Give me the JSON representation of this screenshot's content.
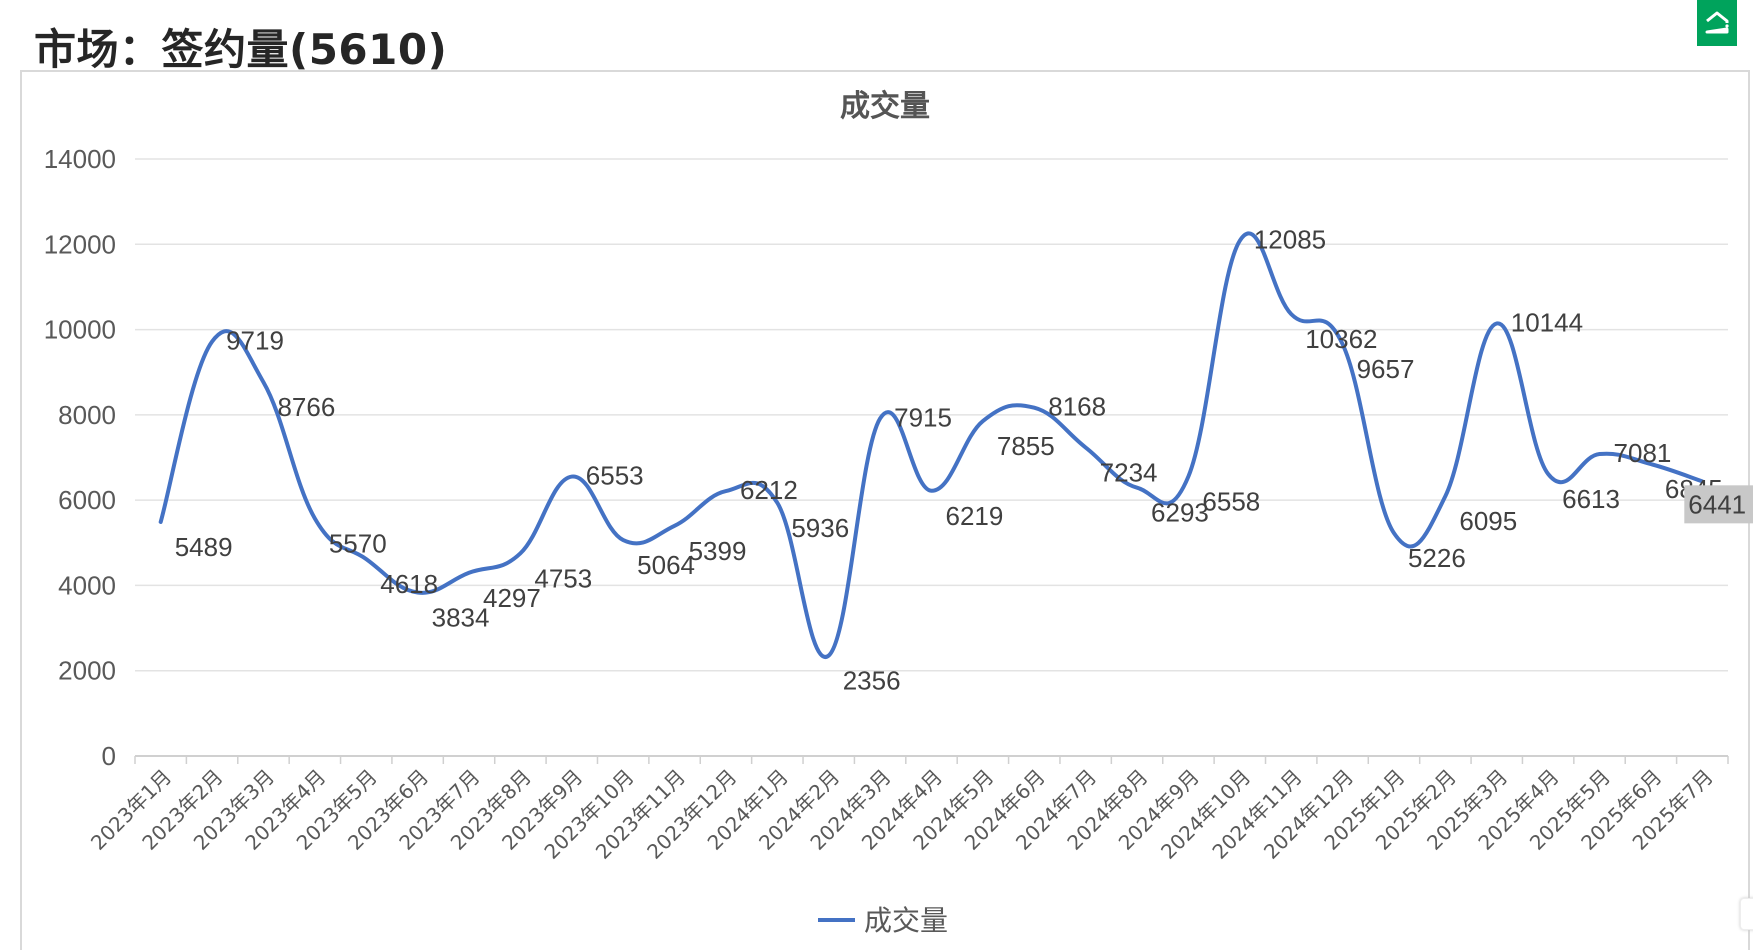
{
  "page": {
    "title": "市场：签约量(5610)"
  },
  "logo": {
    "icon": "house-icon",
    "color": "#00a35c"
  },
  "chart_data": {
    "type": "line",
    "title": "成交量",
    "xlabel": "",
    "ylabel": "",
    "ylim": [
      0,
      14000
    ],
    "yticks": [
      0,
      2000,
      4000,
      6000,
      8000,
      10000,
      12000,
      14000
    ],
    "grid": true,
    "legend_position": "bottom",
    "smooth": true,
    "line_color": "#4472c4",
    "categories": [
      "2023年1月",
      "2023年2月",
      "2023年3月",
      "2023年4月",
      "2023年5月",
      "2023年6月",
      "2023年7月",
      "2023年8月",
      "2023年9月",
      "2023年10月",
      "2023年11月",
      "2023年12月",
      "2024年1月",
      "2024年2月",
      "2024年3月",
      "2024年4月",
      "2024年5月",
      "2024年6月",
      "2024年7月",
      "2024年8月",
      "2024年9月",
      "2024年10月",
      "2024年11月",
      "2024年12月",
      "2025年1月",
      "2025年2月",
      "2025年3月",
      "2025年4月",
      "2025年5月",
      "2025年6月",
      "2025年7月"
    ],
    "series": [
      {
        "name": "成交量",
        "values": [
          5489,
          9719,
          8766,
          5570,
          4618,
          3834,
          4297,
          4753,
          6553,
          5064,
          5399,
          6212,
          5936,
          2356,
          7915,
          6219,
          7855,
          8168,
          7234,
          6293,
          6558,
          12085,
          10362,
          9657,
          5226,
          6095,
          10144,
          6613,
          7081,
          6845,
          6441
        ]
      }
    ],
    "highlighted_label_index": 30
  }
}
